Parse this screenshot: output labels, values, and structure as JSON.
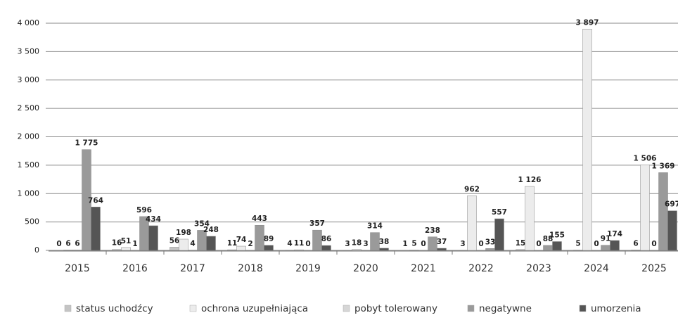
{
  "chart_data": {
    "type": "bar",
    "categories": [
      "2015",
      "2016",
      "2017",
      "2018",
      "2019",
      "2020",
      "2021",
      "2022",
      "2023",
      "2024",
      "2025"
    ],
    "series": [
      {
        "name": "status uchodźcy",
        "color": "#c4c4c4",
        "values": [
          0,
          16,
          56,
          11,
          4,
          3,
          1,
          3,
          15,
          5,
          6
        ],
        "value_labels": [
          "0",
          "16",
          "56",
          "11",
          "4",
          "3",
          "1",
          "3",
          "15",
          "5",
          "6"
        ]
      },
      {
        "name": "ochrona uzupełniająca",
        "color": "#ececec",
        "values": [
          6,
          51,
          198,
          74,
          11,
          18,
          5,
          962,
          1126,
          3897,
          1506
        ],
        "value_labels": [
          "6",
          "51",
          "198",
          "74",
          "11",
          "18",
          "5",
          "962",
          "1 126",
          "3 897",
          "1 506"
        ]
      },
      {
        "name": "pobyt tolerowany",
        "color": "#d6d6d6",
        "values": [
          6,
          1,
          4,
          2,
          0,
          3,
          0,
          0,
          0,
          0,
          0
        ],
        "value_labels": [
          "6",
          "1",
          "4",
          "2",
          "0",
          "3",
          "0",
          "0",
          "0",
          "0",
          "0"
        ]
      },
      {
        "name": "negatywne",
        "color": "#9a9a9a",
        "values": [
          1775,
          596,
          354,
          443,
          357,
          314,
          238,
          33,
          88,
          91,
          1369
        ],
        "value_labels": [
          "1 775",
          "596",
          "354",
          "443",
          "357",
          "314",
          "238",
          "33",
          "88",
          "91",
          "1 369"
        ]
      },
      {
        "name": "umorzenia",
        "color": "#555555",
        "values": [
          764,
          434,
          248,
          89,
          86,
          38,
          37,
          557,
          155,
          174,
          697
        ],
        "value_labels": [
          "764",
          "434",
          "248",
          "89",
          "86",
          "38",
          "37",
          "557",
          "155",
          "174",
          "697"
        ]
      }
    ],
    "ylim": [
      0,
      4000
    ],
    "yticks": [
      0,
      500,
      {
        "value": 1000,
        "label": "1 000"
      },
      {
        "value": 1500,
        "label": "1 500"
      },
      {
        "value": 2000,
        "label": "2 000"
      },
      {
        "value": 2500,
        "label": "2 500"
      },
      {
        "value": 3000,
        "label": "3 000"
      },
      {
        "value": 3500,
        "label": "3 500"
      },
      {
        "value": 4000,
        "label": "4 000"
      }
    ],
    "grid": true,
    "legend": "bottom"
  }
}
